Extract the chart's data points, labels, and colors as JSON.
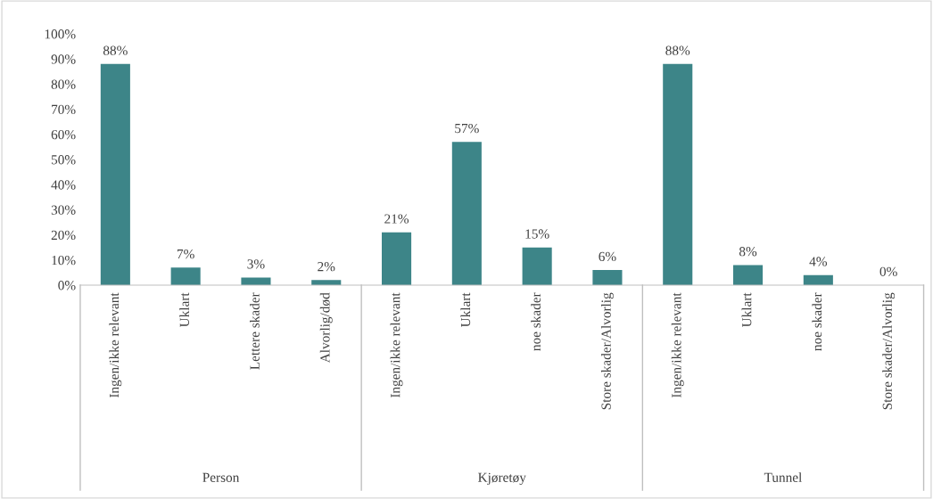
{
  "chart_data": {
    "type": "bar",
    "categories": [
      "Ingen/ikke relevant",
      "Uklart",
      "Lettere skader",
      "Alvorlig/død",
      "Ingen/ikke relevant",
      "Uklart",
      "noe skader",
      "Store skader/Alvorlig",
      "Ingen/ikke relevant",
      "Uklart",
      "noe skader",
      "Store skader/Alvorlig"
    ],
    "values": [
      88,
      7,
      3,
      2,
      21,
      57,
      15,
      6,
      88,
      8,
      4,
      0
    ],
    "value_labels": [
      "88%",
      "7%",
      "3%",
      "2%",
      "21%",
      "57%",
      "15%",
      "6%",
      "88%",
      "8%",
      "4%",
      "0%"
    ],
    "color": "#3d8588",
    "ylim": [
      0,
      100
    ],
    "yticks": [
      {
        "value": 0,
        "label": "0%"
      },
      {
        "value": 10,
        "label": "10%"
      },
      {
        "value": 20,
        "label": "20%"
      },
      {
        "value": 30,
        "label": "30%"
      },
      {
        "value": 40,
        "label": "40%"
      },
      {
        "value": 50,
        "label": "50%"
      },
      {
        "value": 60,
        "label": "60%"
      },
      {
        "value": 70,
        "label": "70%"
      },
      {
        "value": 80,
        "label": "80%"
      },
      {
        "value": 90,
        "label": "90%"
      },
      {
        "value": 100,
        "label": "100%"
      }
    ],
    "annotations": [
      "Person",
      "Kjøretøy",
      "Tunnel"
    ],
    "grid": false
  }
}
